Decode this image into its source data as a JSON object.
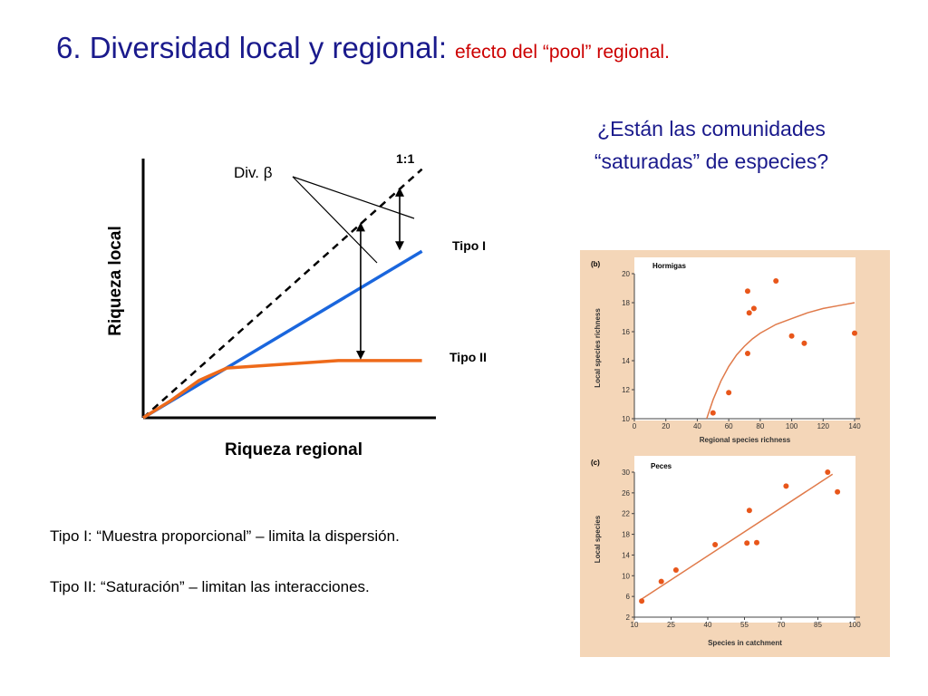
{
  "title": {
    "main": "6.  Diversidad local y regional:",
    "sub": "efecto del “pool” regional."
  },
  "question": {
    "line1": "¿Están las comunidades",
    "line2": "“saturadas” de especies?"
  },
  "notes": {
    "type1": "Tipo I:  “Muestra proporcional” – limita la dispersión.",
    "type2": "Tipo II: “Saturación” – limitan las interacciones."
  },
  "colors": {
    "title": "#1a1a8c",
    "subtitle": "#cc0000",
    "tipo1": "#1a66dd",
    "tipo2": "#ee6a1a",
    "panel_bg": "#f4d6b8",
    "points": "#e8561a",
    "fit": "#e07a4a"
  },
  "chart_data": [
    {
      "type": "line",
      "xlabel": "Riqueza regional",
      "ylabel": "Riqueza local",
      "annotations": {
        "ref_line": "1:1",
        "beta": "Div. β",
        "tipo1": "Tipo I",
        "tipo2": "Tipo II"
      },
      "series": [
        {
          "name": "1:1",
          "style": "dashed",
          "x": [
            0,
            1.0
          ],
          "y": [
            0,
            1.0
          ]
        },
        {
          "name": "Tipo I",
          "x": [
            0,
            1.0
          ],
          "y": [
            0,
            0.67
          ]
        },
        {
          "name": "Tipo II",
          "x": [
            0,
            0.1,
            0.2,
            0.3,
            0.5,
            0.7,
            0.8,
            0.9,
            1.0
          ],
          "y": [
            0,
            0.07,
            0.15,
            0.2,
            0.215,
            0.23,
            0.23,
            0.23,
            0.23
          ]
        }
      ],
      "beta_arrows": [
        {
          "x": 0.78,
          "from": 0.23,
          "to": 0.79
        },
        {
          "x": 0.92,
          "from": 0.67,
          "to": 0.93
        }
      ],
      "xlim": [
        0,
        1.05
      ],
      "ylim": [
        0,
        1.05
      ],
      "grid": false
    },
    {
      "type": "scatter",
      "panel": "(b)",
      "title": "Hormigas",
      "xlabel": "Regional species richness",
      "ylabel": "Local species richness",
      "xlim": [
        0,
        140
      ],
      "ylim": [
        10,
        20
      ],
      "xticks": [
        0,
        20,
        40,
        60,
        80,
        100,
        120,
        140
      ],
      "yticks": [
        10,
        12,
        14,
        16,
        18,
        20
      ],
      "x": [
        50,
        60,
        72,
        72,
        73,
        76,
        90,
        100,
        108,
        140
      ],
      "y": [
        10.4,
        11.8,
        14.5,
        18.8,
        17.3,
        17.6,
        19.5,
        15.7,
        15.2,
        15.9
      ],
      "fit": {
        "type": "saturating",
        "x": [
          46,
          50,
          55,
          60,
          65,
          70,
          75,
          80,
          90,
          100,
          110,
          120,
          130,
          140
        ],
        "y": [
          10.0,
          11.3,
          12.6,
          13.6,
          14.4,
          15.0,
          15.5,
          15.9,
          16.5,
          16.9,
          17.3,
          17.6,
          17.8,
          18.0
        ]
      }
    },
    {
      "type": "scatter",
      "panel": "(c)",
      "title": "Peces",
      "xlabel": "Species in catchment",
      "ylabel": "Local species",
      "xlim": [
        10,
        100
      ],
      "ylim": [
        2,
        30
      ],
      "xticks": [
        10,
        25,
        40,
        55,
        70,
        85,
        100
      ],
      "yticks": [
        2,
        6,
        10,
        14,
        18,
        22,
        26,
        30
      ],
      "x": [
        13,
        21,
        27,
        43,
        56,
        57,
        60,
        72,
        89,
        93
      ],
      "y": [
        5.1,
        8.9,
        11.1,
        16.0,
        16.3,
        22.6,
        16.4,
        27.3,
        30.0,
        26.2
      ],
      "fit": {
        "type": "linear",
        "x": [
          13,
          91
        ],
        "y": [
          5.5,
          29.6
        ]
      }
    }
  ]
}
